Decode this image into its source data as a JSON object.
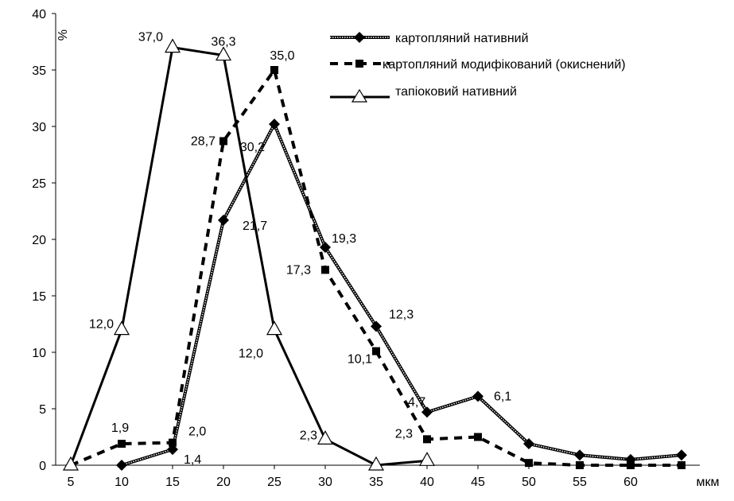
{
  "chart_data": {
    "type": "line",
    "title": "",
    "xlabel": "мкм",
    "ylabel": "%",
    "xlim": [
      5,
      65
    ],
    "ylim": [
      0,
      40
    ],
    "x_ticks": [
      "5",
      "10",
      "15",
      "20",
      "25",
      "30",
      "35",
      "40",
      "45",
      "50",
      "55",
      "60"
    ],
    "y_ticks": [
      "0",
      "5",
      "10",
      "15",
      "20",
      "25",
      "30",
      "35",
      "40"
    ],
    "legend_position": "top-right",
    "grid": false,
    "series": [
      {
        "name": "картопляний нативний",
        "style": "double-line with diamond markers",
        "color": "#000000",
        "x": [
          10,
          15,
          20,
          25,
          30,
          35,
          40,
          45,
          50,
          55,
          60,
          65
        ],
        "y": [
          0,
          1.4,
          21.7,
          30.2,
          19.3,
          12.3,
          4.7,
          6.1,
          1.9,
          0.9,
          0.5,
          0.9
        ],
        "labels": {
          "15": "1,4",
          "20": "21,7",
          "25": "30,2",
          "30": "19,3",
          "35": "12,3",
          "40": "4,7",
          "45": "6,1"
        }
      },
      {
        "name": "картопляний модифікований (окиснений)",
        "style": "dashed with square markers",
        "color": "#000000",
        "x": [
          5,
          10,
          15,
          20,
          25,
          30,
          35,
          40,
          45,
          50,
          55,
          60,
          65
        ],
        "y": [
          0,
          1.9,
          2.0,
          28.7,
          35.0,
          17.3,
          10.1,
          2.3,
          2.5,
          0.2,
          0,
          0,
          0
        ],
        "labels": {
          "10": "1,9",
          "15": "2,0",
          "20": "28,7",
          "25": "35,0",
          "30": "17,3",
          "35": "10,1",
          "40": "2,3"
        }
      },
      {
        "name": "тапіоковий нативний",
        "style": "solid with open triangle markers",
        "color": "#000000",
        "x": [
          5,
          10,
          15,
          20,
          25,
          30,
          35,
          40
        ],
        "y": [
          0,
          12.0,
          37.0,
          36.3,
          12.0,
          2.3,
          0,
          0.4
        ],
        "labels": {
          "10": "12,0",
          "15": "37,0",
          "20": "36,3",
          "25": "12,0",
          "30": "2,3"
        }
      }
    ]
  }
}
